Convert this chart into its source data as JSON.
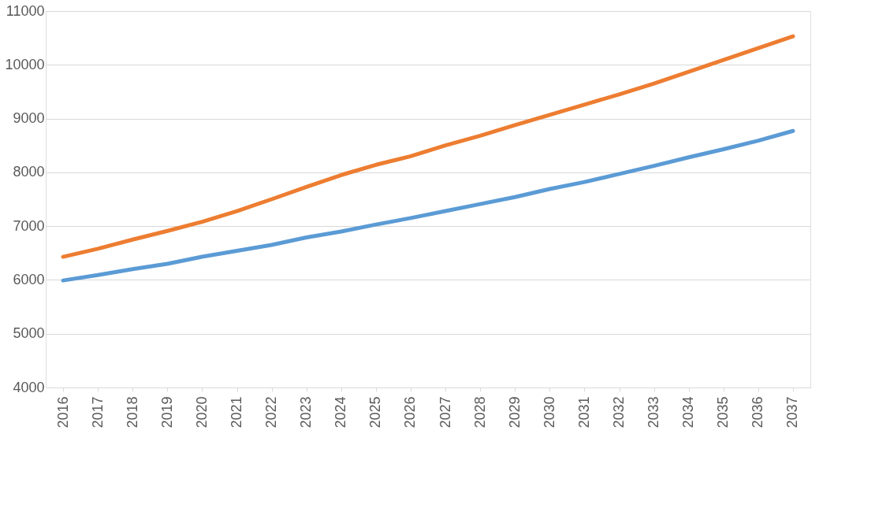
{
  "chart_data": {
    "type": "line",
    "categories": [
      "2016",
      "2017",
      "2018",
      "2019",
      "2020",
      "2021",
      "2022",
      "2023",
      "2024",
      "2025",
      "2026",
      "2027",
      "2028",
      "2029",
      "2030",
      "2031",
      "2032",
      "2033",
      "2034",
      "2035",
      "2036",
      "2037"
    ],
    "series": [
      {
        "color": "#5b9bd5",
        "values": [
          5990,
          6090,
          6200,
          6300,
          6430,
          6540,
          6650,
          6790,
          6900,
          7030,
          7150,
          7280,
          7410,
          7540,
          7690,
          7820,
          7970,
          8120,
          8280,
          8430,
          8590,
          8770
        ]
      },
      {
        "color": "#ed7d31",
        "values": [
          6430,
          6580,
          6750,
          6910,
          7080,
          7280,
          7500,
          7730,
          7950,
          8140,
          8300,
          8500,
          8680,
          8880,
          9070,
          9260,
          9450,
          9650,
          9870,
          10090,
          10310,
          10530
        ]
      }
    ],
    "ylim": [
      4000,
      11000
    ],
    "yticks": [
      4000,
      5000,
      6000,
      7000,
      8000,
      9000,
      10000,
      11000
    ],
    "grid": "y",
    "line_style": "solid",
    "marker": "none"
  }
}
